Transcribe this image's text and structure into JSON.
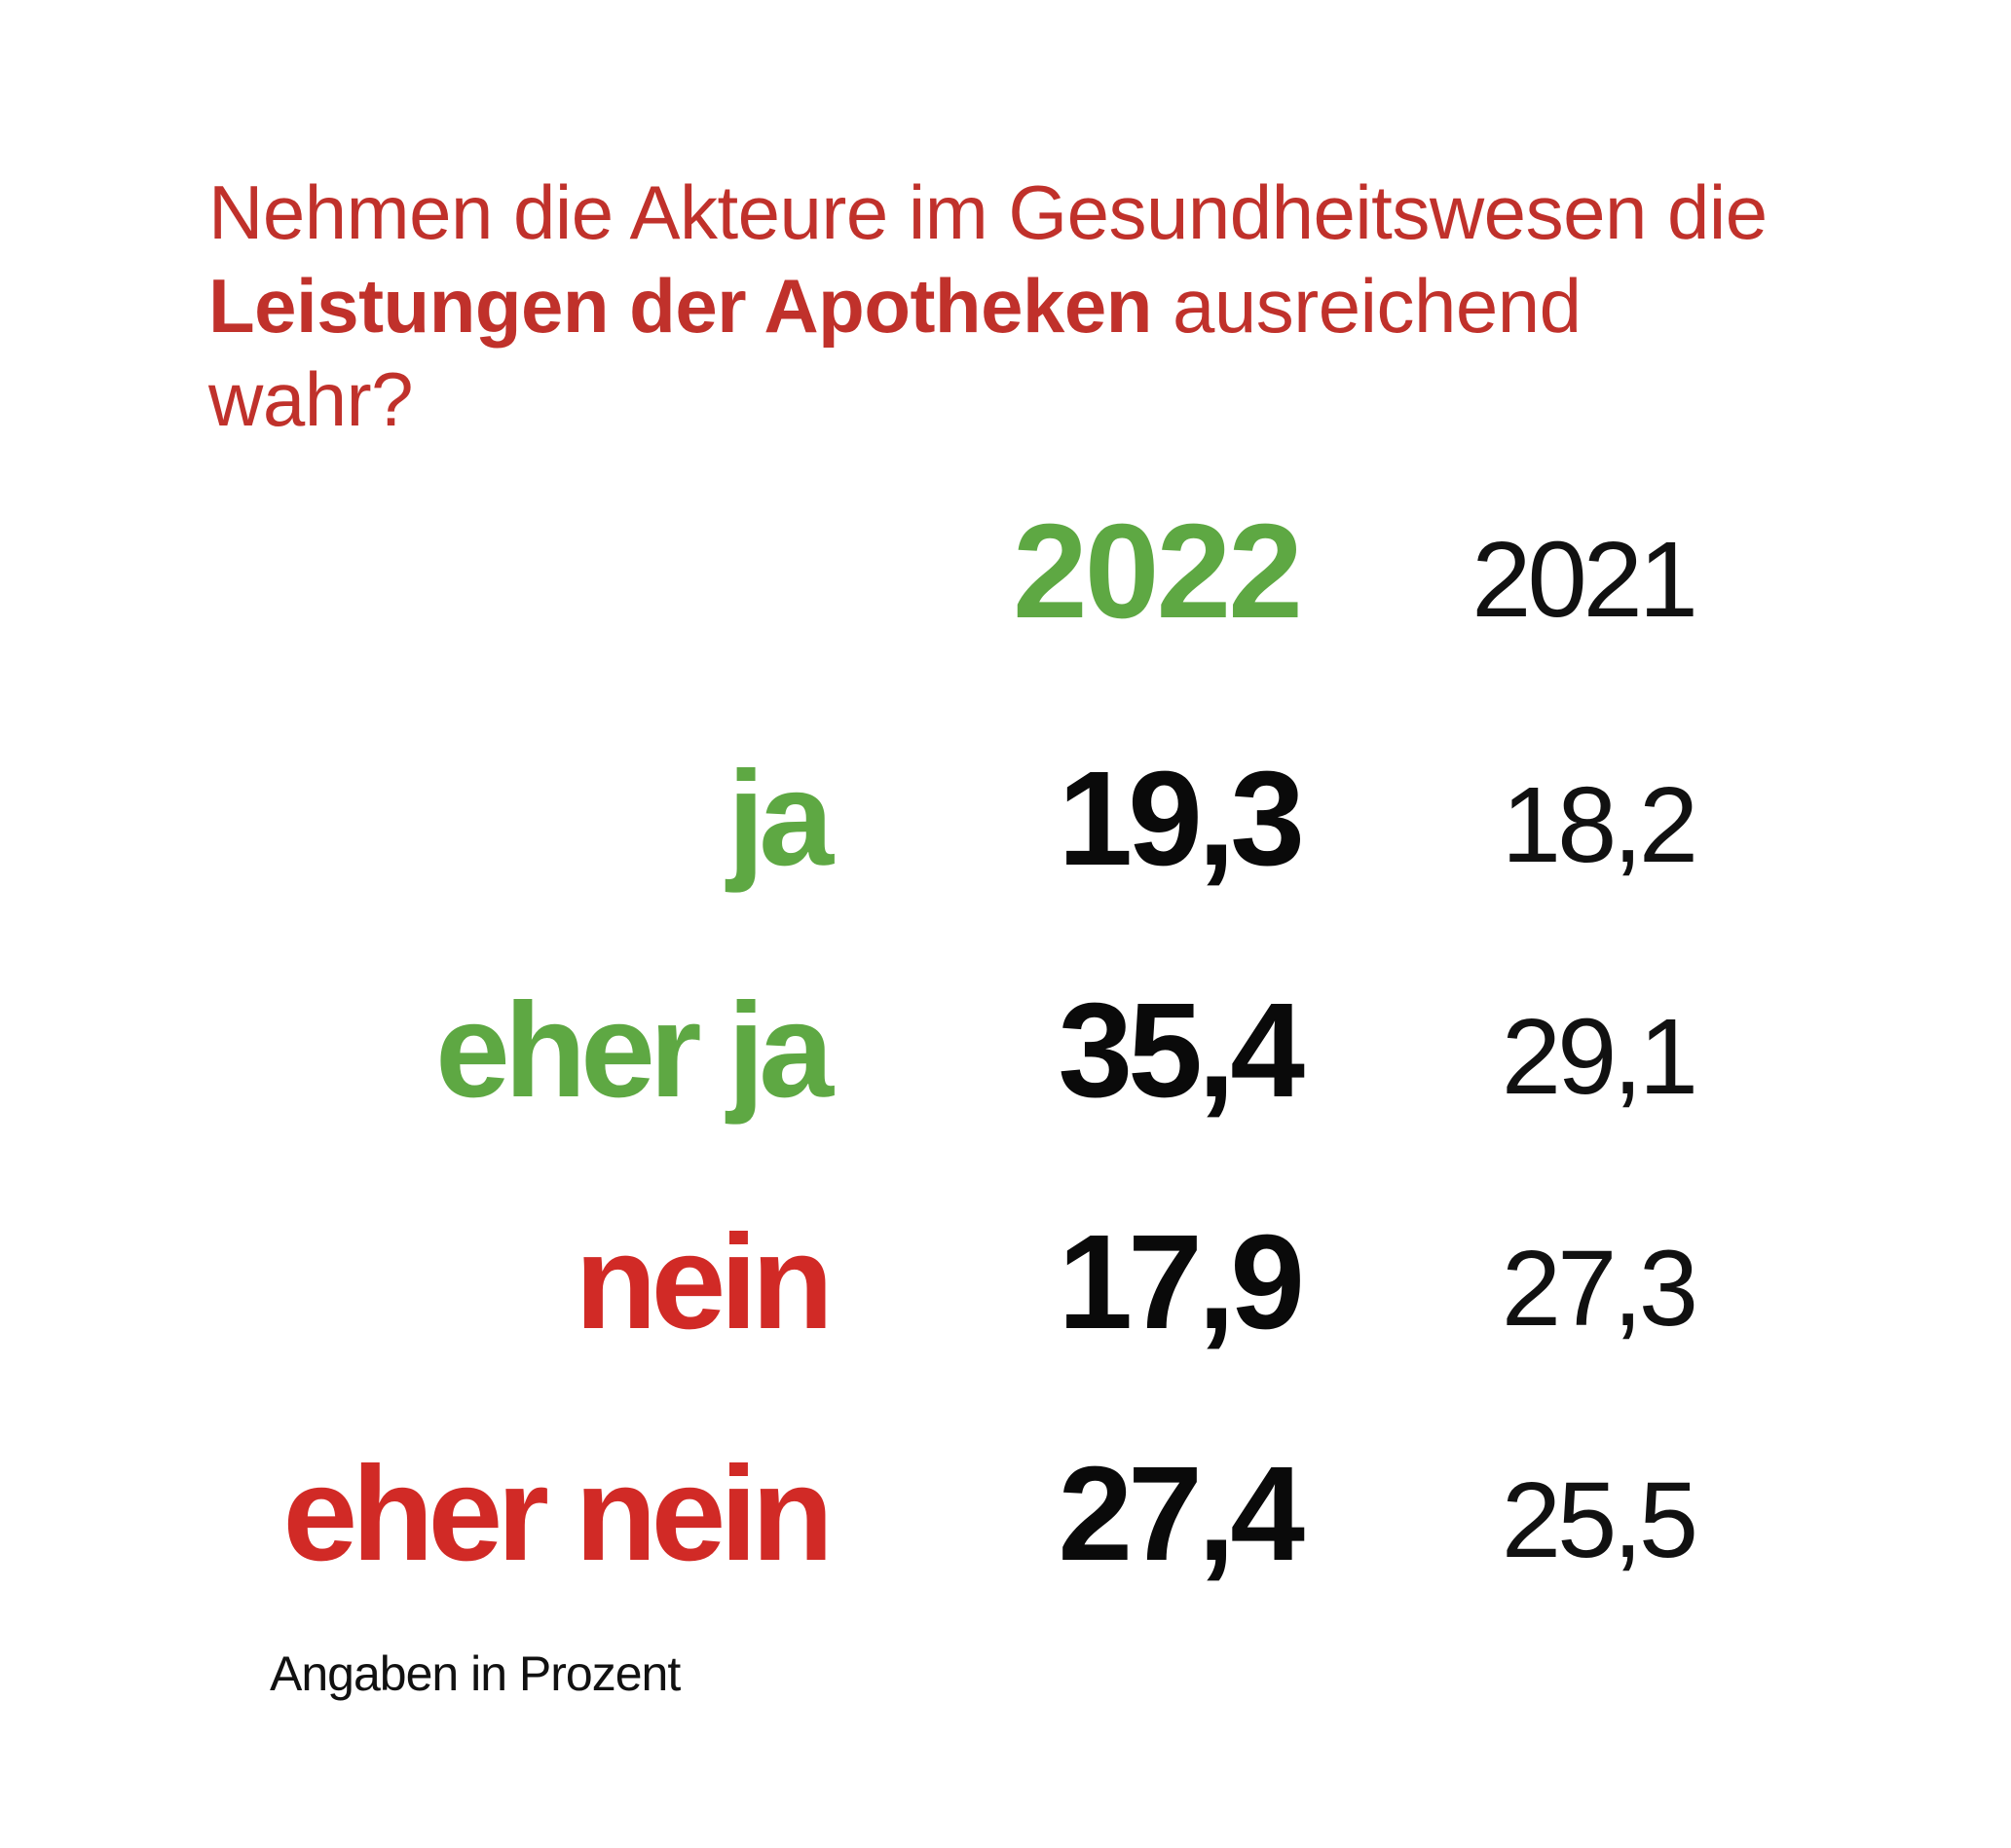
{
  "title": {
    "part1": "Nehmen die Akteure im Gesundheitswesen die ",
    "bold": "Leistungen der Apotheken",
    "part2": " ausreichend wahr?"
  },
  "colors": {
    "green": "#5ea843",
    "red": "#d12a26",
    "title_red": "#c0312b"
  },
  "chart_data": {
    "type": "table",
    "columns": [
      "",
      "2022",
      "2021"
    ],
    "rows": [
      {
        "label": "ja",
        "color": "green",
        "v2022": "19,3",
        "v2021": "18,2"
      },
      {
        "label": "eher ja",
        "color": "green",
        "v2022": "35,4",
        "v2021": "29,1"
      },
      {
        "label": "nein",
        "color": "red",
        "v2022": "17,9",
        "v2021": "27,3"
      },
      {
        "label": "eher nein",
        "color": "red",
        "v2022": "27,4",
        "v2021": "25,5"
      }
    ],
    "footnote": "Angaben in Prozent"
  }
}
